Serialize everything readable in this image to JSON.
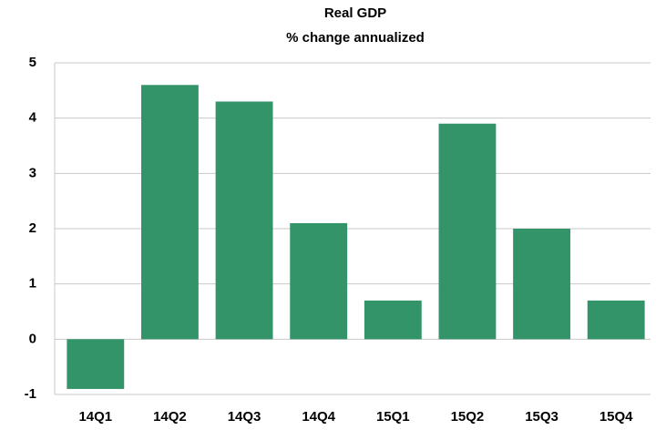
{
  "chart_data": {
    "type": "bar",
    "title": "Real GDP",
    "subtitle": "% change annualized",
    "categories": [
      "14Q1",
      "14Q2",
      "14Q3",
      "14Q4",
      "15Q1",
      "15Q2",
      "15Q3",
      "15Q4"
    ],
    "values": [
      -0.9,
      4.6,
      4.3,
      2.1,
      0.7,
      3.9,
      2.0,
      0.7
    ],
    "color": "#339469",
    "ylim": [
      -1,
      5
    ],
    "yticks": [
      -1,
      0,
      1,
      2,
      3,
      4,
      5
    ],
    "grid": true
  }
}
